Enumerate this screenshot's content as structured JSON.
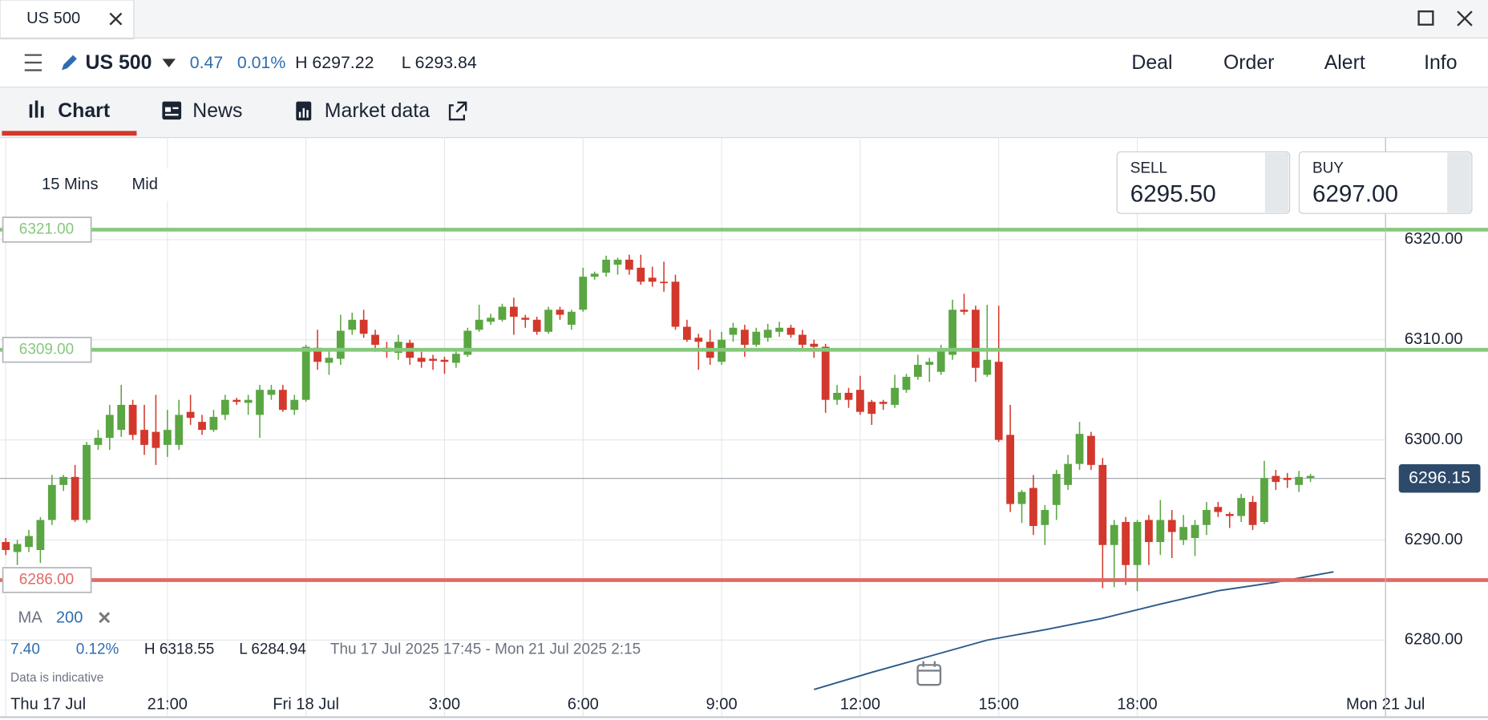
{
  "window": {
    "tab": "US 500"
  },
  "header": {
    "instrument": "US 500",
    "change": "0.47",
    "change_pct": "0.01%",
    "high": "H 6297.22",
    "low": "L 6293.84",
    "actions": [
      "Deal",
      "Order",
      "Alert",
      "Info"
    ]
  },
  "tabs": [
    "Chart",
    "News",
    "Market data"
  ],
  "toolbar": {
    "interval": "15 Mins",
    "price_type": "Mid"
  },
  "ticket": {
    "sell_label": "SELL",
    "sell": "6295.50",
    "buy_label": "BUY",
    "buy": "6297.00"
  },
  "chart_data": {
    "type": "candlestick",
    "up_color": "#5aa642",
    "down_color": "#d3382c",
    "open": [
      6289.8,
      6288.8,
      6289.3,
      6289,
      6292,
      6295.5,
      6296.3,
      6292,
      6299.5,
      6300.2,
      6301,
      6303.5,
      6301,
      6300.8,
      6299.5,
      6299.5,
      6302.8,
      6301.8,
      6301,
      6302.5,
      6304,
      6303.7,
      6302.5,
      6304.5,
      6305,
      6303,
      6304,
      6309.2,
      6307.7,
      6308.1,
      6311,
      6312,
      6310.5,
      6309.2,
      6308.7,
      6309.7,
      6308.2,
      6308.1,
      6308,
      6307.7,
      6308.5,
      6311,
      6311.8,
      6312,
      6313.3,
      6312.2,
      6312,
      6310.8,
      6313,
      6311.5,
      6313,
      6316.3,
      6316.7,
      6317.5,
      6318,
      6317.2,
      6316.2,
      6315.8,
      6315.8,
      6311.3,
      6310.2,
      6309.8,
      6307.8,
      6310.5,
      6311,
      6309.5,
      6310.2,
      6310.8,
      6311.2,
      6310.5,
      6309.6,
      6309.3,
      6304,
      6304.7,
      6305,
      6303.8,
      6303.8,
      6303.5,
      6305,
      6306.3,
      6307.5,
      6306.8,
      6308.5,
      6313,
      6313,
      6306.5,
      6307.8,
      6300.5,
      6293.6,
      6295.2,
      6291.5,
      6293.5,
      6295.5,
      6297.6,
      6300.4,
      6297.5,
      6289.5,
      6291.8,
      6287.5,
      6292,
      6289.8,
      6292,
      6290,
      6290.2,
      6291.5,
      6293.3,
      6292.6,
      6292.4,
      6293.8,
      6291.8,
      6296.4,
      6296.2,
      6295.5,
      6296.2
    ],
    "high": [
      6290.2,
      6290,
      6291,
      6292.3,
      6296.5,
      6296.5,
      6297.5,
      6299.8,
      6301,
      6303.5,
      6305.5,
      6304,
      6303.5,
      6304.5,
      6303,
      6304,
      6304.5,
      6302.5,
      6303,
      6304.5,
      6304.2,
      6304.5,
      6305.5,
      6305.5,
      6305.5,
      6304.5,
      6309.5,
      6311,
      6309,
      6312.5,
      6312.7,
      6313,
      6311,
      6309.8,
      6310.5,
      6310,
      6308.8,
      6308.5,
      6308.3,
      6309,
      6311.2,
      6313.5,
      6312.6,
      6313.6,
      6314.2,
      6312.5,
      6312.3,
      6313.3,
      6313.3,
      6313,
      6317.2,
      6316.8,
      6318.4,
      6318.2,
      6318.5,
      6318.5,
      6317.3,
      6317.8,
      6316.5,
      6312,
      6310.6,
      6311,
      6310.8,
      6311.7,
      6311.5,
      6311.2,
      6311.6,
      6311.8,
      6311.5,
      6311,
      6310,
      6309.6,
      6305.5,
      6305.2,
      6306.4,
      6304,
      6304,
      6306.5,
      6306.6,
      6308.5,
      6308.2,
      6309.5,
      6314,
      6314.6,
      6313.4,
      6313.5,
      6313.4,
      6303.5,
      6295,
      6296.5,
      6293.5,
      6297,
      6298.5,
      6301.8,
      6300.8,
      6298.2,
      6292,
      6292.3,
      6292,
      6292.5,
      6294,
      6293,
      6292.5,
      6292,
      6293.8,
      6293.8,
      6292.8,
      6294.6,
      6294.4,
      6297.9,
      6297,
      6296.7,
      6296.9,
      6296.6
    ],
    "low": [
      6288.5,
      6287.5,
      6288.8,
      6287.7,
      6291.5,
      6294.9,
      6291.8,
      6291.7,
      6299,
      6299,
      6300.3,
      6300,
      6298.5,
      6297.5,
      6298.3,
      6299,
      6301.5,
      6300.5,
      6300.8,
      6302,
      6303.5,
      6302.5,
      6300.2,
      6304,
      6302.8,
      6302.5,
      6303.8,
      6307,
      6306.5,
      6307.5,
      6310.5,
      6310.2,
      6308.8,
      6308.2,
      6308,
      6307.5,
      6307.2,
      6307,
      6306.6,
      6307.2,
      6308.3,
      6310.8,
      6311.5,
      6311.8,
      6310.5,
      6311.2,
      6310.5,
      6310.6,
      6312,
      6311,
      6312.8,
      6316,
      6316.3,
      6316.5,
      6316.5,
      6315.5,
      6315.3,
      6314.8,
      6311,
      6309.8,
      6307,
      6307.5,
      6307.5,
      6309.8,
      6308.3,
      6309.3,
      6309.8,
      6310.3,
      6310.2,
      6309,
      6308.2,
      6302.7,
      6303.5,
      6303.2,
      6302.5,
      6301.5,
      6303,
      6303.2,
      6304.7,
      6306,
      6305.8,
      6306.5,
      6308,
      6312.5,
      6305.8,
      6306.3,
      6299.8,
      6292.8,
      6291.7,
      6290.5,
      6289.5,
      6292,
      6295,
      6297,
      6297,
      6285.2,
      6285.3,
      6285.5,
      6284.9,
      6287.5,
      6288.5,
      6288.2,
      6289.5,
      6288.4,
      6290.5,
      6292.3,
      6291.2,
      6291.8,
      6291,
      6291.6,
      6295,
      6295.2,
      6294.8,
      6295.8
    ],
    "close": [
      6289,
      6289.6,
      6290.4,
      6292,
      6295.5,
      6296.3,
      6292,
      6299.5,
      6300.2,
      6302.5,
      6303.5,
      6300.5,
      6299.5,
      6299.2,
      6301,
      6302.5,
      6302.2,
      6301,
      6302.3,
      6304,
      6303.8,
      6304,
      6305,
      6305,
      6303,
      6304,
      6309.3,
      6307.8,
      6308.2,
      6310.9,
      6312,
      6310.6,
      6309.5,
      6308.8,
      6309.8,
      6308.2,
      6307.8,
      6307.9,
      6307.8,
      6308.6,
      6310.9,
      6312,
      6312.2,
      6313.3,
      6312.3,
      6312,
      6310.8,
      6313,
      6312.5,
      6312.8,
      6316.3,
      6316.6,
      6318,
      6318,
      6317,
      6315.8,
      6315.8,
      6315.7,
      6311.3,
      6310,
      6309.8,
      6308.2,
      6310,
      6311.2,
      6309.5,
      6310.8,
      6311,
      6311.2,
      6310.5,
      6309.5,
      6309.3,
      6304,
      6304.7,
      6304,
      6302.8,
      6302.6,
      6303.6,
      6305.2,
      6306.3,
      6307.5,
      6307.8,
      6309,
      6313,
      6312.8,
      6307.2,
      6308,
      6300,
      6293.6,
      6294.8,
      6291.4,
      6293,
      6296.6,
      6297.6,
      6300.6,
      6297.5,
      6289.5,
      6291.5,
      6287.5,
      6291.8,
      6289.8,
      6292,
      6290.8,
      6291.3,
      6291.5,
      6293,
      6292.8,
      6292.4,
      6294.2,
      6291.5,
      6296.2,
      6295.8,
      6296,
      6296.3,
      6296.4
    ],
    "xlim": [
      -0.5,
      119.5
    ],
    "xticks": [
      {
        "value": 0,
        "label": "Thu 17 Jul"
      },
      {
        "value": 14,
        "label": "21:00"
      },
      {
        "value": 26,
        "label": "Fri 18 Jul"
      },
      {
        "value": 38,
        "label": "3:00"
      },
      {
        "value": 50,
        "label": "6:00"
      },
      {
        "value": 62,
        "label": "9:00"
      },
      {
        "value": 74,
        "label": "12:00"
      },
      {
        "value": 86,
        "label": "15:00"
      },
      {
        "value": 98,
        "label": "18:00"
      },
      {
        "value": 119.5,
        "label": "Mon 21 Jul"
      }
    ],
    "ylim": [
      6272.4,
      6330.2
    ],
    "yticks": [
      {
        "value": 6280,
        "label": "6280.00"
      },
      {
        "value": 6290,
        "label": "6290.00"
      },
      {
        "value": 6300,
        "label": "6300.00"
      },
      {
        "value": 6310,
        "label": "6310.00"
      },
      {
        "value": 6320,
        "label": "6320.00"
      }
    ],
    "grid": true,
    "levels": [
      {
        "value": 6321,
        "label": "6321.00",
        "color": "#86c87c"
      },
      {
        "value": 6309,
        "label": "6309.00",
        "color": "#86c87c"
      },
      {
        "value": 6286,
        "label": "6286.00",
        "color": "#e06a66"
      }
    ],
    "current_price": 6296.15,
    "current_color": "#2d4a6b",
    "ma": {
      "name": "MA",
      "period": "200",
      "color": "#2b5a8c",
      "x": [
        70,
        75,
        80,
        85,
        90,
        95,
        100,
        105,
        110,
        115
      ],
      "values": [
        6275.07,
        6276.78,
        6278.39,
        6280.0,
        6281.04,
        6282.18,
        6283.6,
        6284.93,
        6285.78,
        6286.82
      ]
    }
  },
  "stats": {
    "change": "7.40",
    "change_pct": "0.12%",
    "high": "H 6318.55",
    "low": "L 6284.94",
    "range": "Thu 17 Jul 2025 17:45 - Mon 21 Jul 2025 2:15",
    "note": "Data is indicative"
  }
}
